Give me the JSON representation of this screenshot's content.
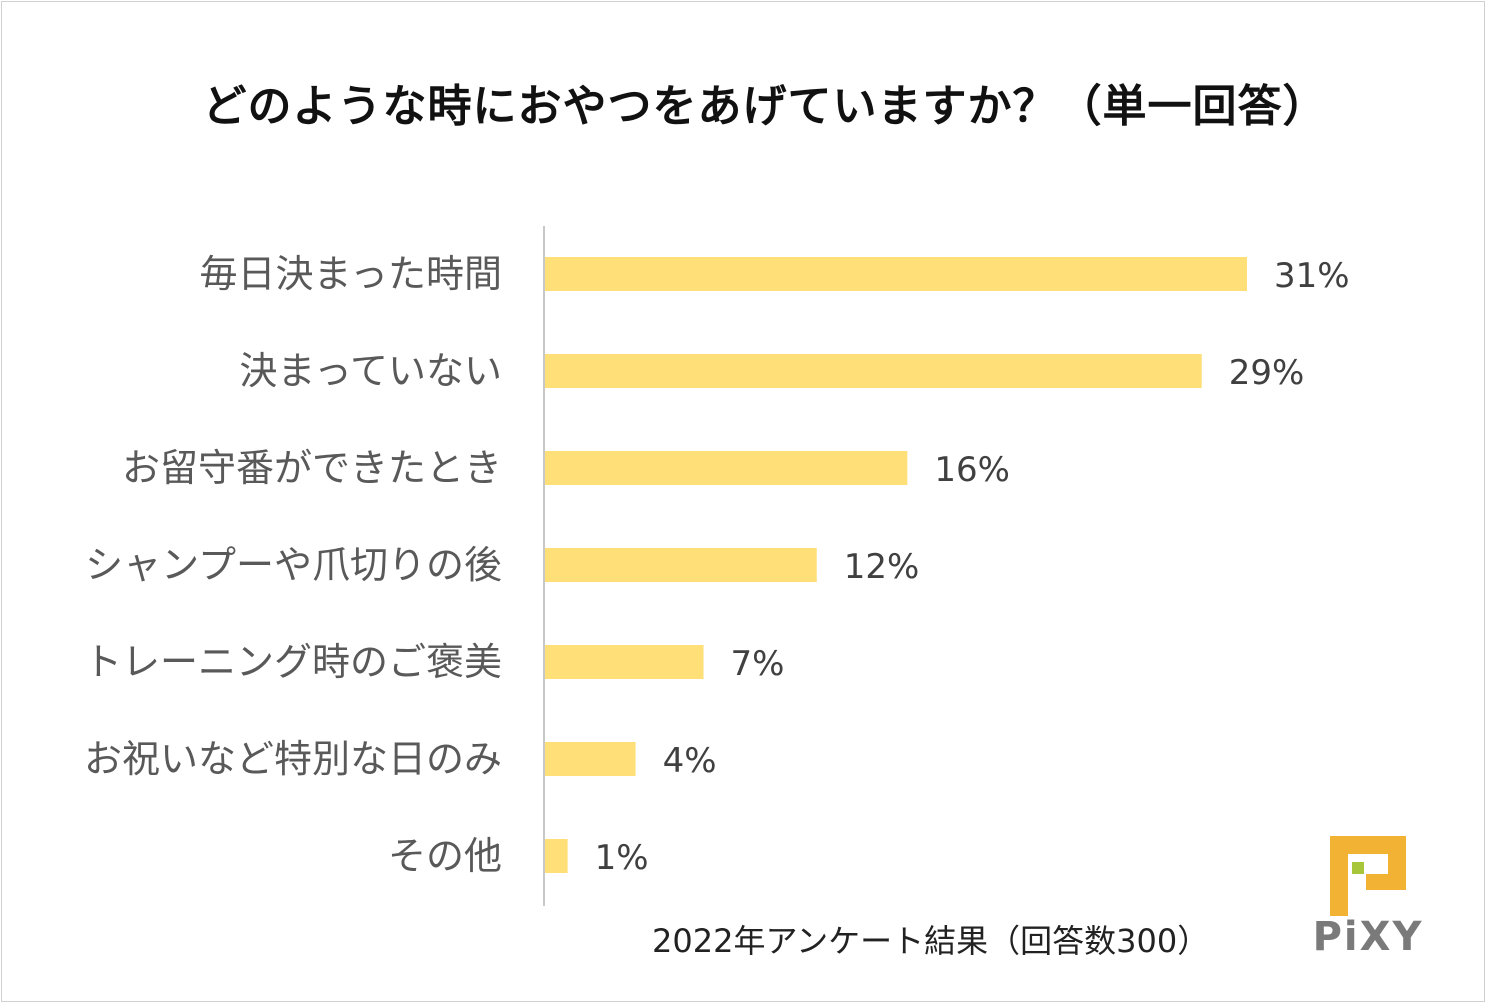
{
  "chart_data": {
    "type": "bar",
    "orientation": "horizontal",
    "title": "どのような時におやつをあげていますか？（単一回答）",
    "categories": [
      "毎日決まった時間",
      "決まっていない",
      "お留守番ができたとき",
      "シャンプーや爪切りの後",
      "トレーニング時のご褒美",
      "お祝いなど特別な日のみ",
      "その他"
    ],
    "values": [
      31,
      29,
      16,
      12,
      7,
      4,
      1
    ],
    "value_labels": [
      "31%",
      "29%",
      "16%",
      "12%",
      "7%",
      "4%",
      "1%"
    ],
    "xlabel": "",
    "ylabel": "",
    "xlim": [
      0,
      31
    ],
    "grid": false,
    "bar_color": "#FFDF77"
  },
  "footer": {
    "note": "2022年アンケート結果（回答数300）"
  },
  "logo": {
    "text": "PiXY",
    "colors": {
      "mark": "#F2B233",
      "accent": "#A7C63A",
      "text": "#7A7A7A"
    }
  }
}
